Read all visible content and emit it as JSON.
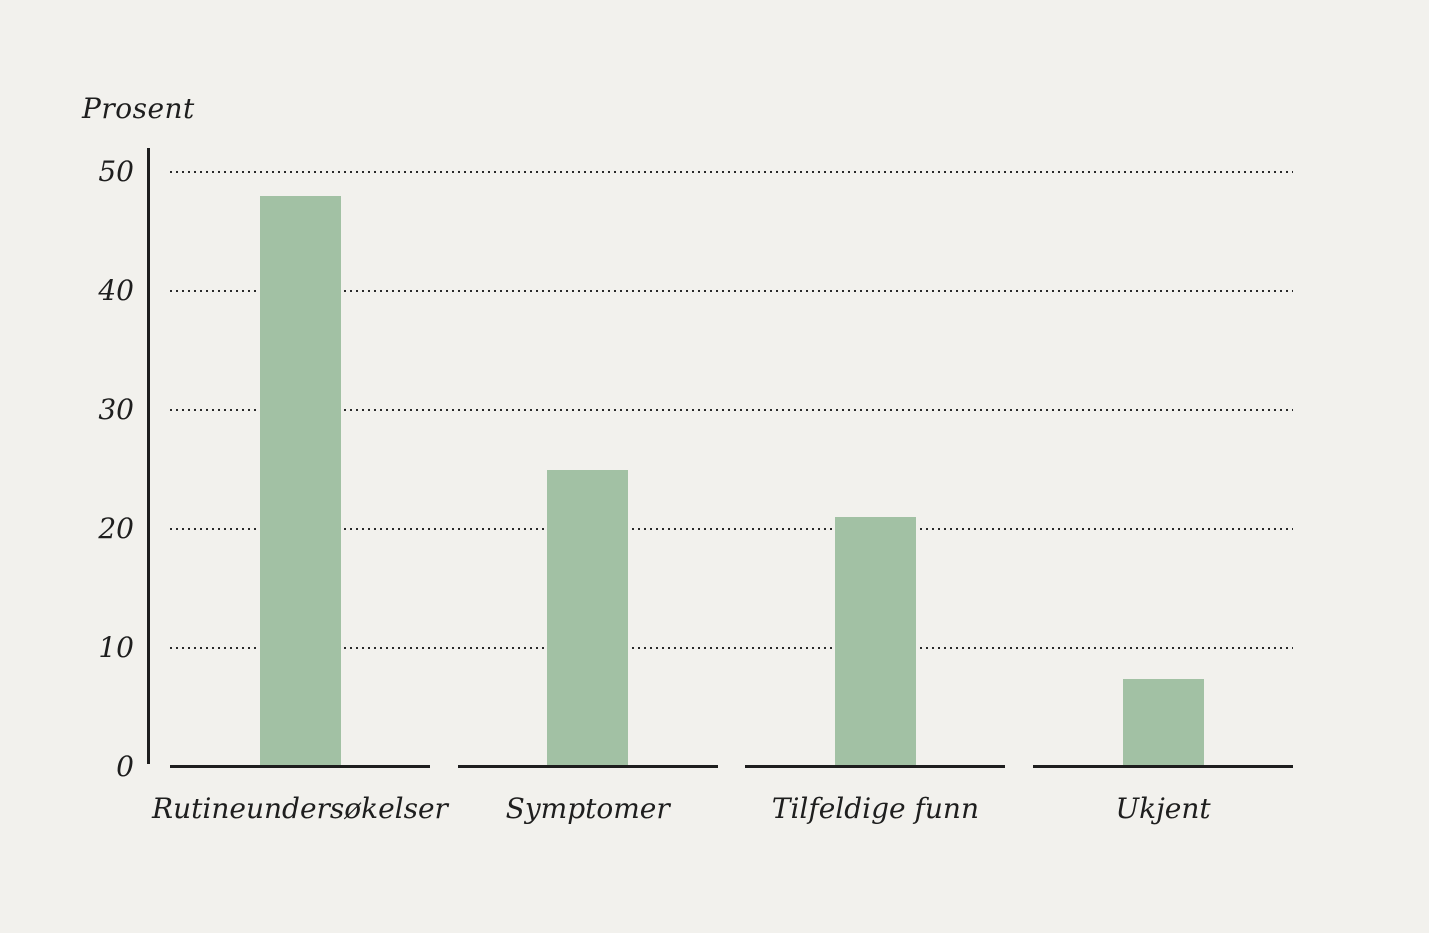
{
  "page": {
    "background_color": "#f2f1ed",
    "text_color": "#1e1e1e"
  },
  "chart_data": {
    "type": "bar",
    "title": "",
    "ylabel": "Prosent",
    "xlabel": "",
    "categories": [
      "Rutineundersøkelser",
      "Symptomer",
      "Tilfeldige funn",
      "Ukjent"
    ],
    "values": [
      48,
      25,
      21,
      7.4
    ],
    "ylim": [
      0,
      50
    ],
    "yticks": [
      0,
      10,
      20,
      30,
      40,
      50
    ],
    "gridlines": "horizontal dotted at 10,20,30,40,50, drawn behind bars",
    "legend_position": "none",
    "bar_color": "#a2c1a4",
    "axis_color": "#1e1e1e",
    "gridline_color": "#2a2a2a",
    "baseline_style": "separate segment under each category"
  }
}
